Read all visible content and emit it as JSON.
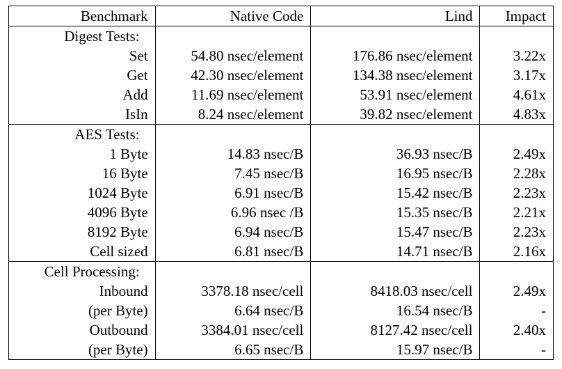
{
  "table": {
    "headers": [
      "Benchmark",
      "Native Code",
      "Lind",
      "Impact"
    ],
    "sections": [
      {
        "title": "Digest Tests:",
        "rows": [
          {
            "benchmark": "Set",
            "native": "54.80 nsec/element",
            "lind": "176.86 nsec/element",
            "impact": "3.22x"
          },
          {
            "benchmark": "Get",
            "native": "42.30 nsec/element",
            "lind": "134.38 nsec/element",
            "impact": "3.17x"
          },
          {
            "benchmark": "Add",
            "native": "11.69 nsec/element",
            "lind": "53.91 nsec/element",
            "impact": "4.61x"
          },
          {
            "benchmark": "IsIn",
            "native": "8.24 nsec/element",
            "lind": "39.82 nsec/element",
            "impact": "4.83x"
          }
        ]
      },
      {
        "title": "AES Tests:",
        "rows": [
          {
            "benchmark": "1 Byte",
            "native": "14.83 nsec/B",
            "lind": "36.93 nsec/B",
            "impact": "2.49x"
          },
          {
            "benchmark": "16 Byte",
            "native": "7.45 nsec/B",
            "lind": "16.95 nsec/B",
            "impact": "2.28x"
          },
          {
            "benchmark": "1024 Byte",
            "native": "6.91 nsec/B",
            "lind": "15.42 nsec/B",
            "impact": "2.23x"
          },
          {
            "benchmark": "4096 Byte",
            "native": "6.96 nsec /B",
            "lind": "15.35 nsec/B",
            "impact": "2.21x"
          },
          {
            "benchmark": "8192 Byte",
            "native": "6.94 nsec/B",
            "lind": "15.47 nsec/B",
            "impact": "2.23x"
          },
          {
            "benchmark": "Cell sized",
            "native": "6.81 nsec/B",
            "lind": "14.71 nsec/B",
            "impact": "2.16x"
          }
        ]
      },
      {
        "title": "Cell Processing:",
        "rows": [
          {
            "benchmark": "Inbound",
            "native": "3378.18 nsec/cell",
            "lind": "8418.03 nsec/cell",
            "impact": "2.49x"
          },
          {
            "benchmark": "(per Byte)",
            "native": "6.64 nsec/B",
            "lind": "16.54 nsec/B",
            "impact": "-"
          },
          {
            "benchmark": "Outbound",
            "native": "3384.01 nsec/cell",
            "lind": "8127.42 nsec/cell",
            "impact": "2.40x"
          },
          {
            "benchmark": "(per Byte)",
            "native": "6.65 nsec/B",
            "lind": "15.97 nsec/B",
            "impact": "-"
          }
        ]
      }
    ]
  }
}
